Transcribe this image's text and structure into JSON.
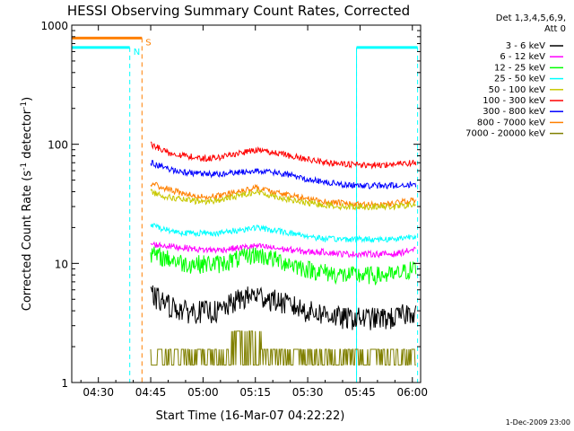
{
  "chart_data": {
    "type": "line",
    "title": "HESSI Observing Summary Count Rates, Corrected",
    "xlabel": "Start Time (16-Mar-07 04:22:22)",
    "ylabel": "Corrected Count Rate (s",
    "ylabel_sup1": "-1",
    "ylabel_mid": " detector",
    "ylabel_sup2": "-1",
    "ylabel_end": ")",
    "y_scale": "log",
    "ylim": [
      1,
      1000
    ],
    "xlim_minutes": [
      22.37,
      122.37
    ],
    "x_ticks": [
      {
        "label": "04:30",
        "minute": 30
      },
      {
        "label": "04:45",
        "minute": 45
      },
      {
        "label": "05:00",
        "minute": 60
      },
      {
        "label": "05:15",
        "minute": 75
      },
      {
        "label": "05:30",
        "minute": 90
      },
      {
        "label": "05:45",
        "minute": 105
      },
      {
        "label": "06:00",
        "minute": 120
      }
    ],
    "y_ticks": [
      {
        "label": "1",
        "value": 1
      },
      {
        "label": "10",
        "value": 10
      },
      {
        "label": "100",
        "value": 100
      },
      {
        "label": "1000",
        "value": 1000
      }
    ],
    "legend_header": [
      "Det 1,3,4,5,6,9,",
      "Att 0"
    ],
    "legend_placement": "right of plot, top",
    "series": [
      {
        "name": "3 - 6 keV",
        "color": "#000000",
        "band": [
          3.0,
          6.0
        ]
      },
      {
        "name": "6 - 12 keV",
        "color": "#ff00ff",
        "band": [
          12.0,
          14.5
        ]
      },
      {
        "name": "12 - 25 keV",
        "color": "#00ff00",
        "band": [
          7.0,
          13.0
        ]
      },
      {
        "name": "25 - 50 keV",
        "color": "#00ffff",
        "band": [
          15.0,
          21.0
        ]
      },
      {
        "name": "50 - 100 keV",
        "color": "#c8c800",
        "band": [
          30.0,
          40.0
        ]
      },
      {
        "name": "100 - 300 keV",
        "color": "#ff0000",
        "band": [
          68.0,
          92.0
        ]
      },
      {
        "name": "300 - 800 keV",
        "color": "#0000ff",
        "band": [
          45.0,
          68.0
        ]
      },
      {
        "name": "800 - 7000 keV",
        "color": "#ff8000",
        "band": [
          32.0,
          45.0
        ]
      },
      {
        "name": "7000 - 20000 keV",
        "color": "#808000",
        "band": [
          1.2,
          2.2
        ]
      }
    ],
    "data_start_minute": 45.0,
    "data_end_minute": 121.0,
    "coarse_curves": {
      "x_minute": [
        45,
        50,
        55,
        60,
        65,
        70,
        75,
        80,
        85,
        90,
        95,
        100,
        105,
        110,
        115,
        120
      ],
      "100 - 300 keV": [
        100,
        85,
        80,
        76,
        78,
        84,
        89,
        86,
        80,
        75,
        71,
        68,
        67,
        67,
        68,
        70
      ],
      "300 - 800 keV": [
        70,
        62,
        58,
        56,
        56,
        58,
        60,
        58,
        55,
        51,
        48,
        46,
        45,
        45,
        45,
        46
      ],
      "800 - 7000 keV": [
        47,
        42,
        38,
        36,
        37,
        40,
        43,
        40,
        37,
        35,
        33,
        32,
        31,
        31,
        32,
        34
      ],
      "50 - 100 keV": [
        40,
        36,
        34,
        33,
        34,
        37,
        40,
        37,
        34,
        32,
        31,
        30,
        30,
        30,
        30,
        31
      ],
      "25 - 50 keV": [
        21,
        19,
        18,
        18,
        18,
        19,
        20,
        19,
        18,
        17,
        16,
        16,
        16,
        16,
        16,
        17
      ],
      "6 - 12 keV": [
        14.5,
        14,
        13.5,
        13,
        13,
        13.5,
        14,
        13.5,
        13,
        12.5,
        12.5,
        12,
        12,
        12,
        12,
        13
      ],
      "12 - 25 keV": [
        12,
        11,
        10,
        10,
        10,
        11,
        12,
        11,
        10,
        9,
        8.5,
        8,
        8,
        8,
        8,
        9
      ],
      "3 - 6 keV": [
        5.5,
        4.5,
        4,
        4,
        4,
        5,
        5.5,
        5,
        4.5,
        4,
        3.8,
        3.5,
        3.5,
        3.5,
        3.5,
        4
      ],
      "7000 - 20000 keV": [
        1.7,
        1.6,
        1.6,
        1.6,
        1.7,
        2.2,
        2.2,
        1.6,
        1.6,
        1.6,
        1.6,
        1.6,
        1.6,
        1.6,
        1.6,
        1.6
      ]
    },
    "state_markers": [
      {
        "label": "N",
        "color": "#00ffff",
        "kind": "night",
        "level": 650,
        "segments_minute": [
          [
            22.37,
            39.0
          ],
          [
            104.0,
            121.5
          ]
        ],
        "edges_minute": [
          39.0,
          104.0,
          121.5
        ]
      },
      {
        "label": "S",
        "color": "#ff8000",
        "kind": "saa",
        "level": 780,
        "segments_minute": [
          [
            22.37,
            42.5
          ]
        ],
        "edges_minute": [
          42.5
        ]
      }
    ],
    "footer_date": "1-Dec-2009 23:00"
  }
}
